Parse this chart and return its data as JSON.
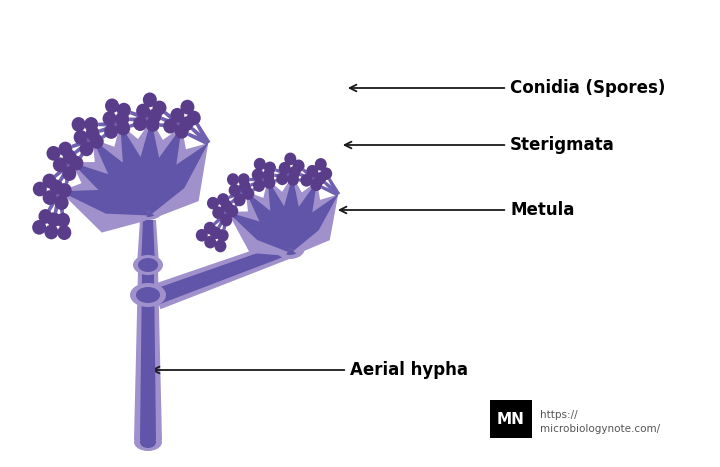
{
  "background_color": "#ffffff",
  "color_stem_outer": "#9b8ec4",
  "color_stem_inner": "#5b52a3",
  "color_metula_outer": "#8878bb",
  "color_metula_inner": "#6a5fb5",
  "color_metula_fill": "#7b6fb8",
  "color_sterigma": "#7060b0",
  "color_spore": "#5a3d8a",
  "color_branch_light": "#a090cc",
  "color_branch_dark": "#6055a8",
  "color_outline": "#4a40a0",
  "labels": {
    "conidia": "Conidia (Spores)",
    "sterigmata": "Sterigmata",
    "metula": "Metula",
    "aerial": "Aerial hypha"
  },
  "logo_text": "MN",
  "logo_url": "https://\nmicrobiologynote.com/",
  "fig_width": 7.2,
  "fig_height": 4.67
}
